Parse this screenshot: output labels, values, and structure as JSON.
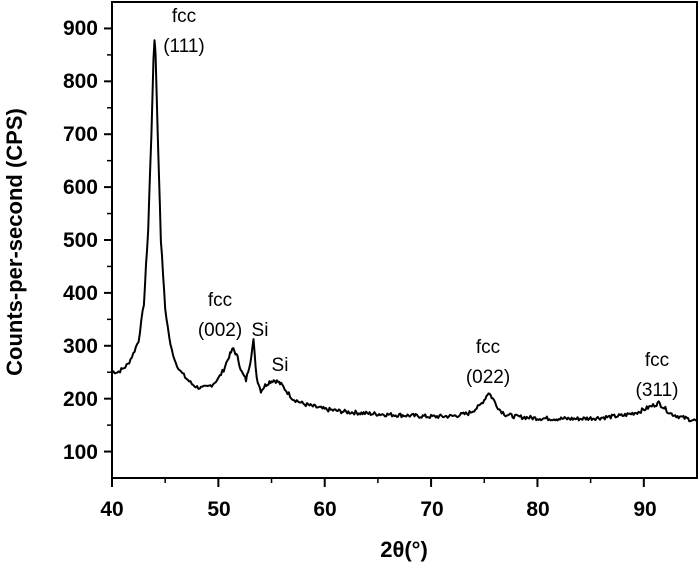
{
  "chart_data": {
    "type": "line",
    "title": "",
    "xlabel": "2θ(°)",
    "ylabel": "Counts-per-second (CPS)",
    "xlim": [
      40,
      95
    ],
    "ylim": [
      50,
      950
    ],
    "grid": false,
    "legend": null,
    "x_ticks": [
      40,
      50,
      60,
      70,
      80,
      90
    ],
    "x_minor_ticks": [
      45,
      55,
      65,
      75,
      85
    ],
    "y_ticks": [
      100,
      200,
      300,
      400,
      500,
      600,
      700,
      800,
      900
    ],
    "y_minor_ticks": [
      150,
      250,
      350,
      450,
      550,
      650,
      750,
      850
    ],
    "series": [
      {
        "name": "XRD pattern",
        "color": "#000000",
        "x": [
          40.0,
          40.5,
          41.0,
          41.5,
          42.0,
          42.5,
          43.0,
          43.4,
          43.7,
          43.9,
          44.0,
          44.1,
          44.3,
          44.6,
          45.0,
          45.5,
          46.0,
          46.5,
          47.0,
          47.5,
          48.0,
          48.5,
          49.0,
          49.5,
          50.0,
          50.5,
          51.0,
          51.4,
          51.8,
          52.2,
          52.6,
          53.0,
          53.3,
          53.6,
          54.0,
          54.4,
          54.8,
          55.2,
          55.6,
          56.0,
          56.5,
          57.0,
          57.5,
          58.0,
          59.0,
          60.0,
          62.0,
          64.0,
          66.0,
          68.0,
          70.0,
          72.0,
          73.5,
          74.5,
          75.0,
          75.4,
          75.8,
          76.4,
          77.0,
          78.0,
          80.0,
          82.0,
          84.0,
          86.0,
          88.0,
          89.5,
          90.5,
          91.0,
          91.4,
          91.8,
          92.5,
          93.5,
          94.5,
          95.0
        ],
        "y": [
          252,
          250,
          256,
          265,
          285,
          310,
          380,
          520,
          700,
          840,
          880,
          850,
          700,
          500,
          370,
          300,
          268,
          250,
          238,
          228,
          222,
          220,
          222,
          228,
          238,
          255,
          280,
          295,
          278,
          250,
          235,
          270,
          310,
          240,
          215,
          225,
          232,
          235,
          232,
          225,
          212,
          200,
          195,
          190,
          185,
          180,
          175,
          172,
          170,
          168,
          166,
          167,
          172,
          185,
          198,
          212,
          200,
          180,
          170,
          166,
          163,
          162,
          162,
          164,
          168,
          175,
          184,
          188,
          192,
          185,
          172,
          165,
          160,
          158
        ]
      }
    ],
    "annotations": [
      {
        "line1": "fcc",
        "line2": "(111)",
        "x": 44.2
      },
      {
        "line1": "fcc",
        "line2": "(002)",
        "x": 51.4
      },
      {
        "line1": "Si",
        "line2": "",
        "x": 53.4
      },
      {
        "line1": "Si",
        "line2": "",
        "x": 55.6
      },
      {
        "line1": "fcc",
        "line2": "(022)",
        "x": 75.4
      },
      {
        "line1": "fcc",
        "line2": "(311)",
        "x": 91.4
      }
    ]
  },
  "labels": {
    "xlabel": "2θ(°)",
    "ylabel": "Counts-per-second (CPS)",
    "x_tick_labels": [
      "40",
      "50",
      "60",
      "70",
      "80",
      "90"
    ],
    "y_tick_labels": [
      "100",
      "200",
      "300",
      "400",
      "500",
      "600",
      "700",
      "800",
      "900"
    ],
    "annot_111_l1": "fcc",
    "annot_111_l2": "(111)",
    "annot_002_l1": "fcc",
    "annot_002_l2": "(002)",
    "annot_si1": "Si",
    "annot_si2": "Si",
    "annot_022_l1": "fcc",
    "annot_022_l2": "(022)",
    "annot_311_l1": "fcc",
    "annot_311_l2": "(311)"
  }
}
